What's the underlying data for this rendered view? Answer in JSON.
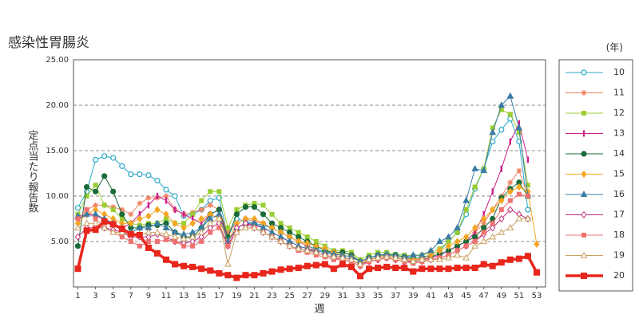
{
  "chart_data": {
    "type": "line",
    "title": "感染性胃腸炎",
    "y_label": "定点当たり報告数",
    "x_label": "週",
    "legend_title": "(年)",
    "x": [
      1,
      2,
      3,
      4,
      5,
      6,
      7,
      8,
      9,
      10,
      11,
      12,
      13,
      14,
      15,
      16,
      17,
      18,
      19,
      20,
      21,
      22,
      23,
      24,
      25,
      26,
      27,
      28,
      29,
      30,
      31,
      32,
      33,
      34,
      35,
      36,
      37,
      38,
      39,
      40,
      41,
      42,
      43,
      44,
      45,
      46,
      47,
      48,
      49,
      50,
      51,
      52,
      53
    ],
    "xlim": [
      0.5,
      54
    ],
    "xticks": [
      1,
      3,
      5,
      7,
      9,
      11,
      13,
      15,
      17,
      19,
      21,
      23,
      25,
      27,
      29,
      31,
      33,
      35,
      37,
      39,
      41,
      43,
      45,
      47,
      49,
      51,
      53
    ],
    "ylim": [
      0,
      25
    ],
    "yticks": [
      {
        "value": 5,
        "label": "5.00"
      },
      {
        "value": 10,
        "label": "10.00"
      },
      {
        "value": 15,
        "label": "15.00"
      },
      {
        "value": 20,
        "label": "20.00"
      },
      {
        "value": 25,
        "label": "25.00"
      }
    ],
    "grid": true,
    "series": [
      {
        "name": "10",
        "color": "#29a8c9",
        "marker": "circle-open",
        "values": [
          8.7,
          10.5,
          14.0,
          14.4,
          14.2,
          13.3,
          12.4,
          12.4,
          12.3,
          11.7,
          10.7,
          10.0,
          7.8,
          8.0,
          8.5,
          9.5,
          9.8,
          5.5,
          7.5,
          7.2,
          7.0,
          6.8,
          6.5,
          6.0,
          5.5,
          5.0,
          4.5,
          4.2,
          3.8,
          3.8,
          3.8,
          3.5,
          2.8,
          3.2,
          3.5,
          3.6,
          3.5,
          3.3,
          3.2,
          3.3,
          3.5,
          4.0,
          5.0,
          6.0,
          8.0,
          10.8,
          13.0,
          16.0,
          17.3,
          18.5,
          16.0,
          8.5,
          null
        ]
      },
      {
        "name": "11",
        "color": "#f08060",
        "marker": "asterisk",
        "values": [
          7.5,
          8.5,
          9.0,
          9.0,
          8.8,
          8.5,
          8.0,
          9.2,
          9.8,
          9.8,
          10.0,
          8.5,
          8.0,
          8.2,
          8.5,
          9.0,
          8.5,
          6.0,
          7.0,
          7.5,
          7.2,
          7.0,
          6.5,
          6.0,
          5.5,
          5.0,
          4.5,
          4.0,
          3.8,
          3.5,
          3.3,
          3.0,
          2.5,
          3.0,
          3.2,
          3.3,
          3.2,
          3.0,
          3.0,
          3.0,
          3.2,
          3.5,
          4.0,
          4.5,
          5.0,
          6.0,
          7.0,
          8.5,
          10.0,
          11.5,
          12.8,
          10.0,
          null
        ]
      },
      {
        "name": "12",
        "color": "#9acd32",
        "marker": "square",
        "values": [
          8.0,
          10.0,
          11.2,
          9.0,
          8.5,
          7.5,
          7.0,
          6.8,
          7.0,
          7.0,
          7.5,
          7.0,
          7.0,
          8.0,
          9.5,
          10.5,
          10.5,
          6.5,
          8.5,
          9.0,
          9.2,
          9.0,
          8.0,
          7.0,
          6.5,
          6.0,
          5.5,
          5.0,
          4.5,
          4.0,
          4.0,
          3.8,
          3.0,
          3.5,
          3.8,
          3.8,
          3.6,
          3.5,
          3.4,
          3.5,
          3.8,
          4.2,
          5.0,
          6.0,
          8.5,
          11.0,
          13.0,
          17.5,
          19.5,
          19.0,
          17.0,
          11.2,
          null
        ]
      },
      {
        "name": "13",
        "color": "#cc1f8a",
        "marker": "bar",
        "values": [
          7.5,
          8.0,
          7.8,
          7.5,
          7.0,
          6.5,
          7.0,
          8.0,
          9.0,
          10.0,
          9.5,
          8.5,
          8.0,
          7.5,
          7.0,
          8.0,
          8.5,
          5.0,
          6.5,
          7.0,
          6.8,
          6.5,
          6.0,
          5.5,
          5.0,
          4.5,
          4.2,
          3.8,
          3.5,
          3.3,
          3.2,
          3.0,
          2.5,
          2.8,
          3.0,
          3.2,
          3.0,
          2.8,
          2.8,
          3.0,
          3.2,
          3.5,
          4.0,
          4.5,
          5.0,
          6.0,
          8.0,
          10.5,
          13.0,
          16.0,
          18.0,
          14.0,
          null
        ]
      },
      {
        "name": "14",
        "color": "#1a6b3a",
        "marker": "circle",
        "values": [
          4.5,
          11.0,
          10.5,
          12.2,
          10.5,
          8.0,
          6.5,
          6.5,
          6.8,
          6.8,
          7.0,
          6.0,
          5.5,
          5.5,
          6.5,
          8.0,
          8.5,
          5.5,
          8.0,
          8.8,
          8.8,
          8.0,
          7.0,
          6.5,
          6.0,
          5.5,
          5.0,
          4.5,
          4.0,
          3.8,
          3.8,
          3.5,
          2.8,
          3.2,
          3.5,
          3.5,
          3.5,
          3.3,
          3.0,
          3.2,
          3.4,
          3.6,
          4.0,
          4.5,
          5.0,
          5.5,
          6.5,
          7.5,
          9.8,
          10.8,
          11.5,
          10.0,
          null
        ]
      },
      {
        "name": "15",
        "color": "#f5a623",
        "marker": "diamond",
        "values": [
          7.0,
          8.0,
          8.5,
          8.0,
          7.5,
          7.0,
          7.0,
          7.5,
          7.8,
          8.5,
          8.0,
          7.0,
          6.5,
          7.0,
          7.5,
          8.0,
          7.5,
          5.0,
          7.0,
          7.5,
          7.5,
          7.0,
          6.5,
          6.0,
          5.5,
          5.0,
          4.8,
          4.5,
          4.2,
          3.8,
          3.5,
          3.3,
          2.8,
          3.0,
          3.3,
          3.5,
          3.3,
          3.2,
          3.0,
          3.2,
          3.5,
          4.0,
          4.5,
          5.0,
          5.5,
          6.5,
          7.5,
          8.5,
          9.5,
          10.5,
          11.0,
          10.5,
          4.7
        ]
      },
      {
        "name": "16",
        "color": "#3a7ca5",
        "marker": "triangle",
        "values": [
          7.8,
          8.0,
          8.0,
          7.5,
          7.0,
          6.5,
          6.0,
          6.5,
          6.5,
          7.0,
          6.5,
          6.0,
          5.8,
          6.0,
          6.5,
          7.5,
          8.0,
          5.0,
          6.5,
          7.0,
          7.0,
          6.5,
          6.0,
          5.5,
          5.0,
          4.5,
          4.2,
          4.0,
          3.8,
          3.6,
          3.5,
          3.3,
          2.8,
          3.2,
          3.5,
          3.6,
          3.5,
          3.3,
          3.5,
          3.5,
          4.0,
          5.0,
          5.5,
          6.5,
          9.5,
          13.0,
          12.8,
          17.0,
          20.0,
          21.0,
          17.5,
          10.0,
          null
        ]
      },
      {
        "name": "17",
        "color": "#c0307a",
        "marker": "diamond-open",
        "values": [
          5.5,
          6.5,
          6.5,
          6.5,
          6.3,
          6.0,
          5.5,
          5.5,
          5.5,
          5.8,
          5.5,
          5.0,
          4.8,
          5.0,
          5.5,
          6.5,
          7.0,
          4.5,
          6.5,
          7.0,
          6.5,
          6.0,
          5.5,
          5.0,
          4.5,
          4.2,
          4.0,
          3.8,
          3.5,
          3.2,
          3.0,
          2.8,
          2.3,
          2.8,
          3.0,
          3.2,
          3.0,
          2.8,
          2.7,
          2.8,
          3.0,
          3.2,
          3.5,
          4.0,
          4.5,
          5.0,
          5.8,
          6.5,
          7.5,
          8.5,
          8.0,
          7.5,
          null
        ]
      },
      {
        "name": "18",
        "color": "#f07070",
        "marker": "square",
        "values": [
          7.5,
          8.5,
          7.5,
          6.5,
          6.0,
          5.5,
          5.0,
          4.5,
          5.0,
          5.0,
          5.2,
          5.0,
          4.5,
          4.5,
          5.0,
          6.0,
          6.5,
          4.5,
          6.0,
          6.5,
          6.5,
          6.0,
          5.5,
          5.0,
          4.5,
          4.0,
          3.8,
          3.5,
          3.3,
          3.0,
          3.0,
          2.8,
          2.3,
          2.8,
          3.0,
          3.2,
          3.0,
          2.8,
          2.6,
          2.8,
          3.0,
          3.2,
          3.5,
          4.0,
          4.5,
          5.0,
          6.0,
          7.0,
          8.5,
          9.5,
          10.2,
          10.0,
          null
        ]
      },
      {
        "name": "19",
        "color": "#c8a060",
        "marker": "triangle-open",
        "values": [
          6.5,
          7.0,
          7.0,
          6.5,
          6.0,
          6.0,
          5.8,
          5.8,
          6.0,
          6.0,
          5.8,
          5.5,
          5.3,
          5.5,
          6.0,
          7.0,
          7.5,
          2.5,
          6.0,
          6.5,
          6.5,
          6.0,
          5.5,
          5.0,
          4.5,
          4.2,
          4.0,
          3.8,
          3.5,
          3.3,
          3.2,
          3.0,
          2.5,
          3.0,
          3.2,
          3.3,
          3.2,
          3.0,
          2.8,
          3.0,
          3.0,
          3.0,
          3.2,
          3.5,
          3.2,
          4.5,
          5.0,
          5.5,
          6.0,
          6.5,
          7.5,
          7.5,
          null
        ]
      },
      {
        "name": "20",
        "color": "#e8261c",
        "marker": "square",
        "bold": true,
        "values": [
          2.0,
          6.2,
          6.3,
          7.2,
          6.9,
          6.4,
          5.8,
          5.7,
          4.3,
          3.7,
          3.0,
          2.5,
          2.3,
          2.2,
          2.0,
          1.8,
          1.5,
          1.3,
          1.0,
          1.3,
          1.3,
          1.5,
          1.7,
          1.9,
          2.0,
          2.1,
          2.3,
          2.4,
          2.5,
          2.0,
          2.5,
          2.2,
          1.2,
          2.0,
          2.1,
          2.2,
          2.1,
          2.1,
          1.7,
          2.0,
          2.0,
          2.0,
          2.0,
          2.1,
          2.1,
          2.1,
          2.5,
          2.3,
          2.7,
          3.0,
          3.1,
          3.4,
          1.6
        ]
      }
    ]
  }
}
